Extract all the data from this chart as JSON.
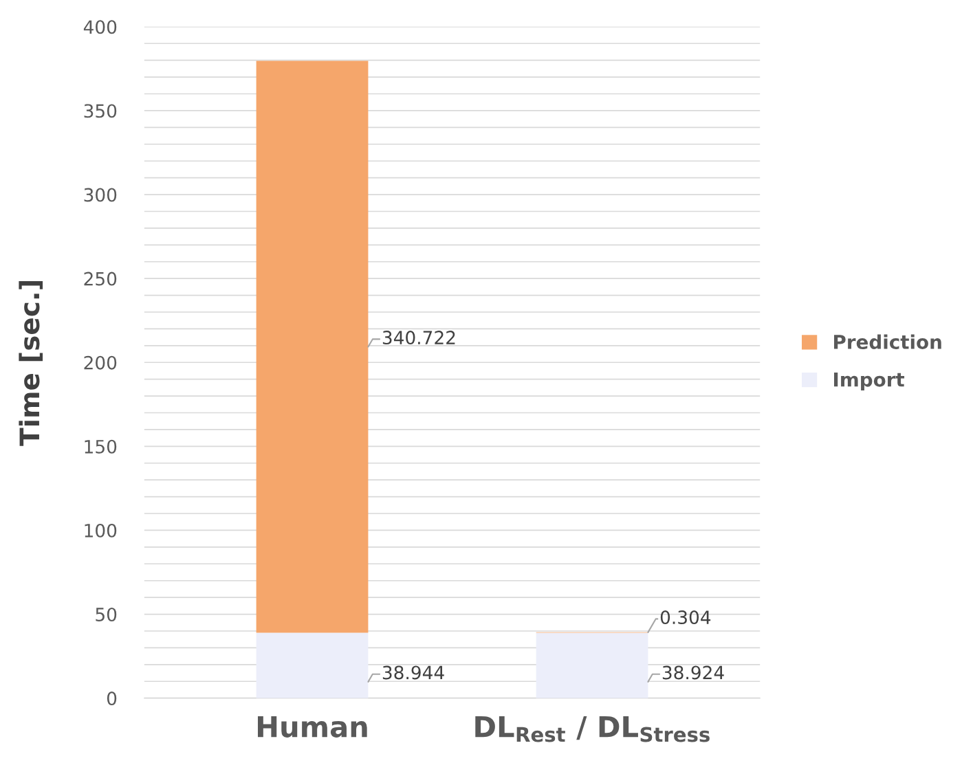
{
  "chart_data": {
    "type": "bar",
    "stacked": true,
    "ylabel": "Time [sec.]",
    "categories": [
      "Human",
      "DL$_{Rest}$ / DL$_{Stress}$"
    ],
    "series": [
      {
        "name": "Import",
        "color": "#eceefa",
        "values": [
          38.944,
          38.924
        ]
      },
      {
        "name": "Prediction",
        "color": "#f5a66b",
        "values": [
          340.722,
          0.304
        ]
      }
    ],
    "ylim": [
      0,
      400
    ],
    "yticks": [
      0,
      {
        "value": 10,
        "label": null
      },
      {
        "value": 20,
        "label": null
      },
      {
        "value": 30,
        "label": null
      },
      {
        "value": 40,
        "label": null
      },
      50,
      {
        "value": 60,
        "label": null
      },
      {
        "value": 70,
        "label": null
      },
      {
        "value": 80,
        "label": null
      },
      {
        "value": 90,
        "label": null
      },
      100,
      {
        "value": 110,
        "label": null
      },
      {
        "value": 120,
        "label": null
      },
      {
        "value": 130,
        "label": null
      },
      {
        "value": 140,
        "label": null
      },
      150,
      {
        "value": 160,
        "label": null
      },
      {
        "value": 170,
        "label": null
      },
      {
        "value": 180,
        "label": null
      },
      {
        "value": 190,
        "label": null
      },
      200,
      {
        "value": 210,
        "label": null
      },
      {
        "value": 220,
        "label": null
      },
      {
        "value": 230,
        "label": null
      },
      {
        "value": 240,
        "label": null
      },
      250,
      {
        "value": 260,
        "label": null
      },
      {
        "value": 270,
        "label": null
      },
      {
        "value": 280,
        "label": null
      },
      {
        "value": 290,
        "label": null
      },
      300,
      {
        "value": 310,
        "label": null
      },
      {
        "value": 320,
        "label": null
      },
      {
        "value": 330,
        "label": null
      },
      {
        "value": 340,
        "label": null
      },
      350,
      {
        "value": 360,
        "label": null
      },
      {
        "value": 370,
        "label": null
      },
      {
        "value": 380,
        "label": null
      },
      {
        "value": 390,
        "label": null
      },
      400
    ],
    "grid": "y",
    "legend": "right",
    "data_labels": true
  }
}
